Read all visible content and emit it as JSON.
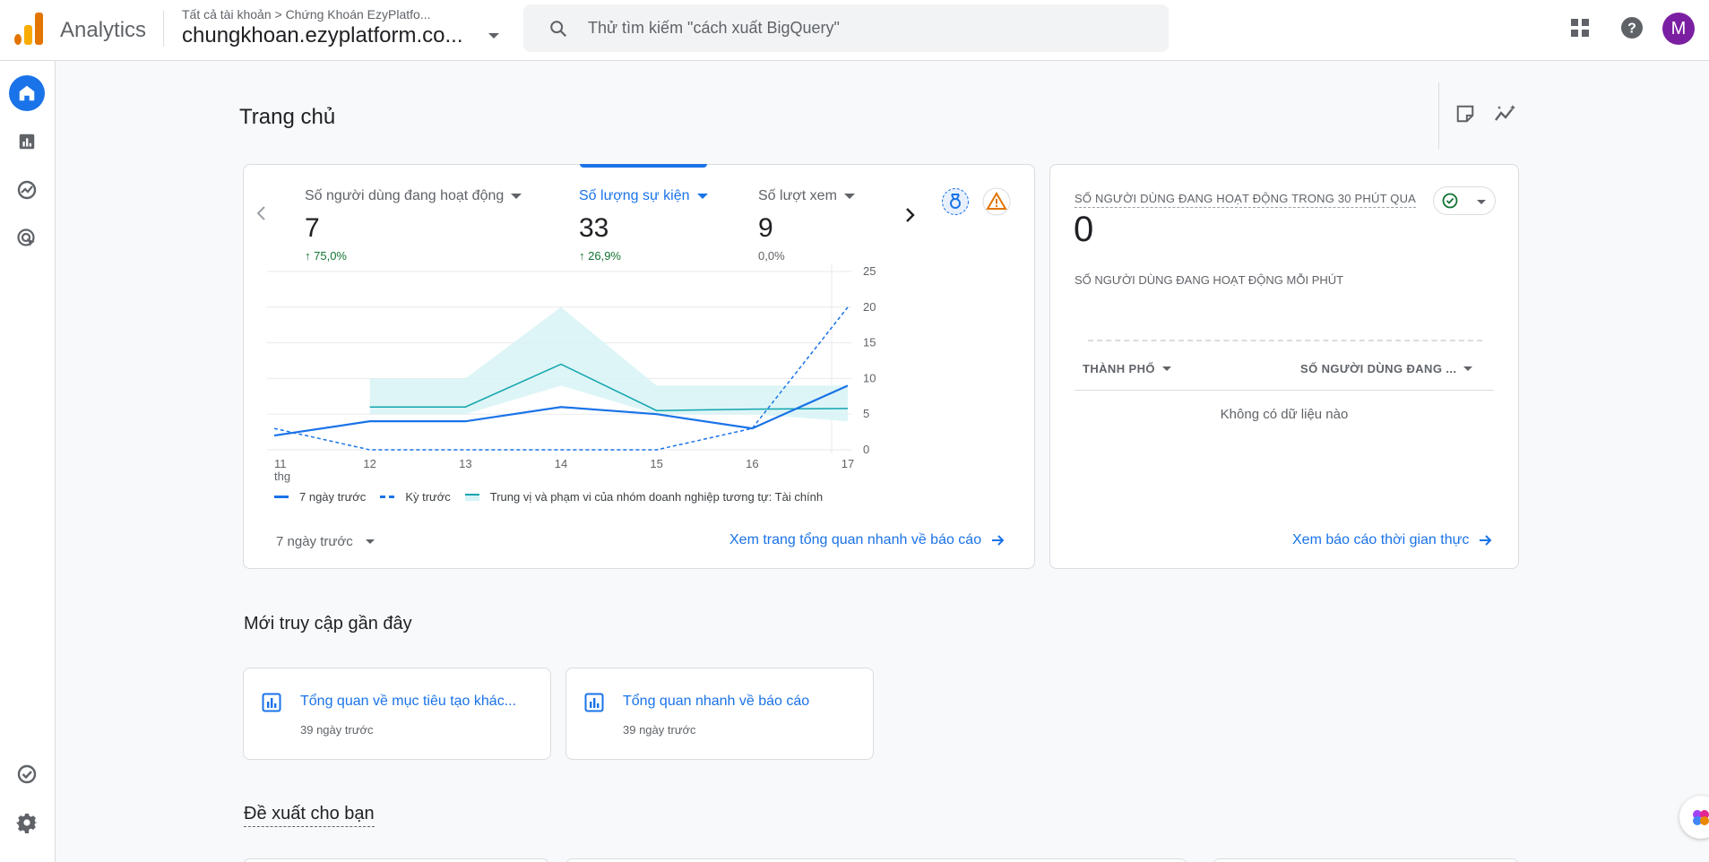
{
  "header": {
    "app_name": "Analytics",
    "breadcrumb": "Tất cả tài khoản > Chứng Khoán EzyPlatfo...",
    "account": "chungkhoan.ezyplatform.co...",
    "search_placeholder": "Thử tìm kiếm \"cách xuất BigQuery\"",
    "avatar_letter": "M"
  },
  "page": {
    "title": "Trang chủ"
  },
  "metrics": [
    {
      "label": "Số người dùng đang hoạt động",
      "value": "7",
      "change": "75,0%"
    },
    {
      "label": "Số lượng sự kiện",
      "value": "33",
      "change": "26,9%"
    },
    {
      "label": "Số lượt xem",
      "value": "9",
      "change": "0,0%"
    }
  ],
  "chart_data": {
    "type": "line",
    "x": [
      "11",
      "12",
      "13",
      "14",
      "15",
      "16",
      "17"
    ],
    "x_sublabel": "thg",
    "ylim": [
      0,
      25
    ],
    "yticks": [
      "0",
      "5",
      "10",
      "15",
      "20",
      "25"
    ],
    "series": [
      {
        "name": "7 ngày trước",
        "values": [
          2,
          4,
          4,
          6,
          5,
          3,
          9
        ]
      },
      {
        "name": "Kỳ trước",
        "values": [
          3,
          0,
          0,
          0,
          0,
          3,
          20
        ]
      },
      {
        "name": "Trung vị và phạm vi của nhóm doanh nghiệp tương tự: Tài chính",
        "values": [
          null,
          6,
          6,
          12,
          5.5,
          5.7,
          5.8
        ],
        "range_low": [
          null,
          5,
          5,
          9,
          5,
          5,
          4
        ],
        "range_high": [
          null,
          10,
          10,
          20,
          9,
          9,
          9
        ]
      }
    ],
    "colors": {
      "current": "#1a73e8",
      "previous": "#1a73e8",
      "benchmark": "#12a4af",
      "band": "#d7f3f5"
    }
  },
  "chart_footer": {
    "date_range": "7 ngày trước",
    "overview_link": "Xem trang tổng quan nhanh về báo cáo"
  },
  "realtime": {
    "title": "SỐ NGƯỜI DÙNG ĐANG HOẠT ĐỘNG TRONG 30 PHÚT QUA",
    "value": "0",
    "per_minute_title": "SỐ NGƯỜI DÙNG ĐANG HOẠT ĐỘNG MỖI PHÚT",
    "col_city": "THÀNH PHỐ",
    "col_users": "SỐ NGƯỜI DÙNG ĐANG ...",
    "empty": "Không có dữ liệu nào",
    "link": "Xem báo cáo thời gian thực"
  },
  "recent": {
    "title": "Mới truy cập gần đây",
    "items": [
      {
        "title": "Tổng quan về mục tiêu tạo khác...",
        "time": "39 ngày trước"
      },
      {
        "title": "Tổng quan nhanh về báo cáo",
        "time": "39 ngày trước"
      }
    ]
  },
  "suggestions": {
    "title": "Đề xuất cho bạn"
  }
}
